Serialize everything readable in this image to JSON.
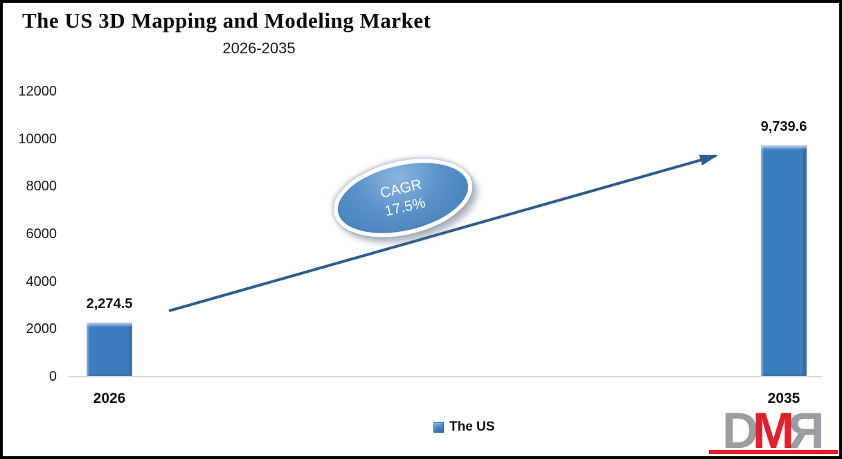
{
  "title": "The US 3D Mapping and Modeling Market",
  "subtitle": "2026-2035",
  "colors": {
    "bar_fill": "#3a7ec1",
    "arrow": "#2c5d8f",
    "axis_line": "#d9d9d9",
    "cagr_fill": "#4a86c0",
    "cagr_ring": "#ffffff",
    "logo_gray": "#9a9da1",
    "logo_red": "#e2202c"
  },
  "chart_data": {
    "type": "bar",
    "categories": [
      "2026",
      "2035"
    ],
    "series": [
      {
        "name": "The US",
        "values": [
          2274.5,
          9739.6
        ]
      }
    ],
    "data_labels": [
      "2,274.5",
      "9,739.6"
    ],
    "title": "The US 3D Mapping and Modeling Market",
    "subtitle": "2026-2035",
    "xlabel": "",
    "ylabel": "",
    "ylim": [
      0,
      12000
    ],
    "ytick_step": 2000,
    "yticks": [
      "12000",
      "10000",
      "8000",
      "6000",
      "4000",
      "2000",
      "0"
    ],
    "grid": "off",
    "legend": {
      "position": "bottom",
      "items": [
        "The US"
      ]
    },
    "annotation": {
      "line1": "CAGR",
      "line2": "17.5%"
    }
  },
  "logo": {
    "d": "D",
    "m": "M",
    "r": "R"
  }
}
